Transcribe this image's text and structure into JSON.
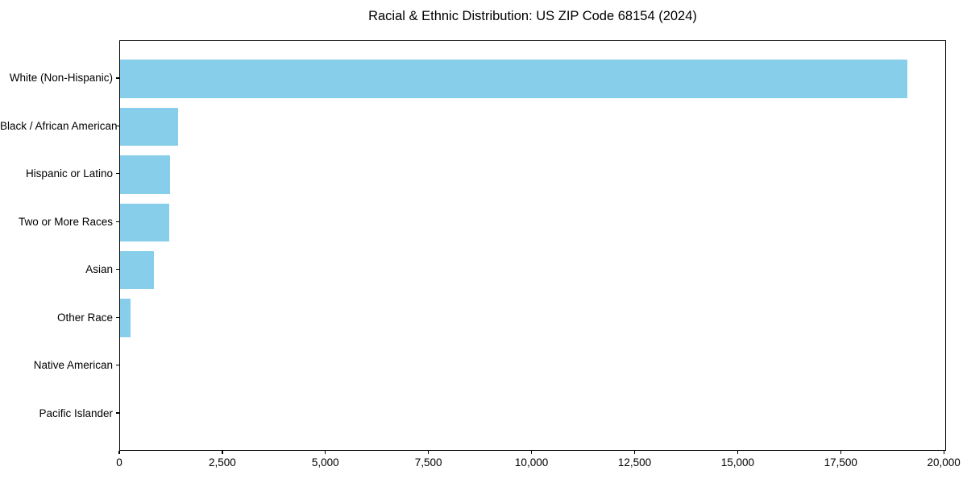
{
  "chart_data": {
    "type": "bar",
    "orientation": "horizontal",
    "title": "Racial & Ethnic Distribution: US ZIP Code 68154 (2024)",
    "categories": [
      "White (Non-Hispanic)",
      "Black / African American",
      "Hispanic or Latino",
      "Two or More Races",
      "Asian",
      "Other Race",
      "Native American",
      "Pacific Islander"
    ],
    "values": [
      19100,
      1400,
      1210,
      1190,
      820,
      250,
      0,
      0
    ],
    "bar_color": "#87CEEB",
    "spine_color": "#000000",
    "text_color": "#000000",
    "xlabel": "",
    "ylabel": "",
    "xlim": [
      0,
      20055
    ],
    "xticks": {
      "values": [
        0,
        2500,
        5000,
        7500,
        10000,
        12500,
        15000,
        17500,
        20000
      ],
      "labels": [
        "0",
        "2,500",
        "5,000",
        "7,500",
        "10,000",
        "12,500",
        "15,000",
        "17,500",
        "20,000"
      ]
    },
    "grid": false,
    "legend": null,
    "bar_height_fraction": 0.8
  }
}
